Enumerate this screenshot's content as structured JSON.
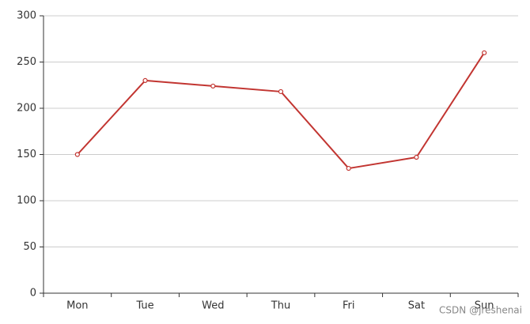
{
  "chart_data": {
    "type": "line",
    "categories": [
      "Mon",
      "Tue",
      "Wed",
      "Thu",
      "Fri",
      "Sat",
      "Sun"
    ],
    "values": [
      150,
      230,
      224,
      218,
      135,
      147,
      260
    ],
    "color": "#c23531",
    "ylim": [
      0,
      300
    ],
    "yticks": [
      0,
      50,
      100,
      150,
      200,
      250,
      300
    ],
    "grid": true,
    "watermark": "CSDN @jreshenai"
  }
}
